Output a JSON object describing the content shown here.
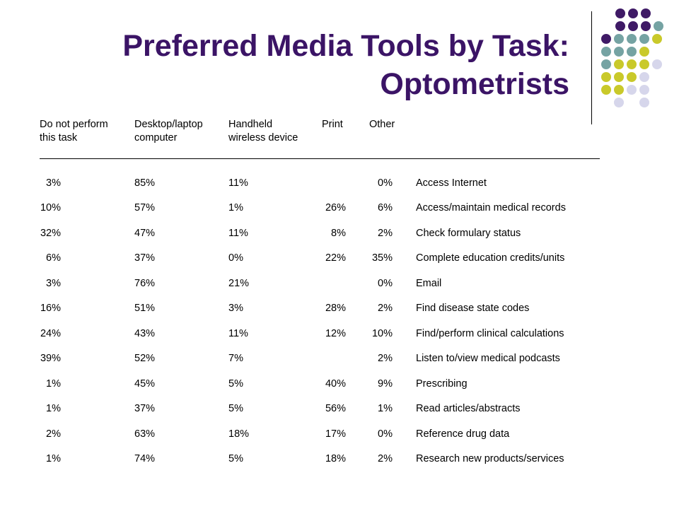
{
  "slide": {
    "title_line1": "Preferred Media Tools by Task:",
    "title_line2": "Optometrists",
    "accent_colors": {
      "title": "#3b1466",
      "dot_purple": "#3f1a66",
      "dot_teal": "#75a3a3",
      "dot_yellow": "#c9c92a",
      "dot_lavender": "#d6d6eb"
    }
  },
  "table": {
    "headers": {
      "not_perform_l1": "Do not perform",
      "not_perform_l2": "this task",
      "desktop_l1": "Desktop/laptop",
      "desktop_l2": "computer",
      "handheld_l1": "Handheld",
      "handheld_l2": "wireless device",
      "print": "Print",
      "other": "Other"
    },
    "rows": [
      {
        "not_perform": "3%",
        "desktop": "85%",
        "handheld": "11%",
        "print": "",
        "other": "0%",
        "task": "Access Internet"
      },
      {
        "not_perform": "10%",
        "desktop": "57%",
        "handheld": "1%",
        "print": "26%",
        "other": "6%",
        "task": "Access/maintain medical records"
      },
      {
        "not_perform": "32%",
        "desktop": "47%",
        "handheld": "11%",
        "print": "8%",
        "other": "2%",
        "task": "Check formulary status"
      },
      {
        "not_perform": "6%",
        "desktop": "37%",
        "handheld": "0%",
        "print": "22%",
        "other": "35%",
        "task": "Complete education credits/units"
      },
      {
        "not_perform": "3%",
        "desktop": "76%",
        "handheld": "21%",
        "print": "",
        "other": "0%",
        "task": "Email"
      },
      {
        "not_perform": "16%",
        "desktop": "51%",
        "handheld": "3%",
        "print": "28%",
        "other": "2%",
        "task": "Find disease state codes"
      },
      {
        "not_perform": "24%",
        "desktop": "43%",
        "handheld": "11%",
        "print": "12%",
        "other": "10%",
        "task": "Find/perform clinical calculations"
      },
      {
        "not_perform": "39%",
        "desktop": "52%",
        "handheld": "7%",
        "print": "",
        "other": "2%",
        "task": "Listen to/view medical podcasts"
      },
      {
        "not_perform": "1%",
        "desktop": "45%",
        "handheld": "5%",
        "print": "40%",
        "other": "9%",
        "task": "Prescribing"
      },
      {
        "not_perform": "1%",
        "desktop": "37%",
        "handheld": "5%",
        "print": "56%",
        "other": "1%",
        "task": "Read articles/abstracts"
      },
      {
        "not_perform": "2%",
        "desktop": "63%",
        "handheld": "18%",
        "print": "17%",
        "other": "0%",
        "task": "Reference drug data"
      },
      {
        "not_perform": "1%",
        "desktop": "74%",
        "handheld": "5%",
        "print": "18%",
        "other": "2%",
        "task": "Research new products/services"
      }
    ]
  }
}
